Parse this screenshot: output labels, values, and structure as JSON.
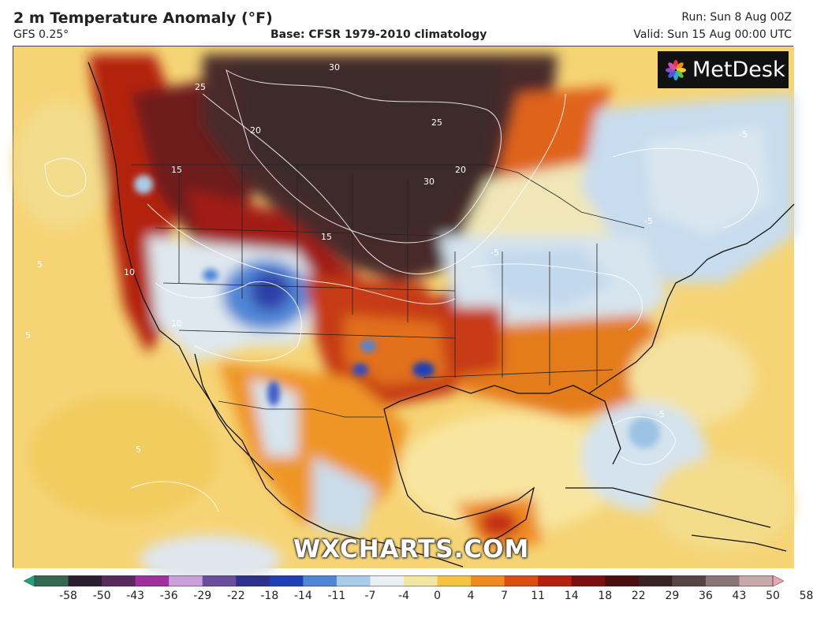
{
  "header": {
    "title": "2 m Temperature Anomaly (°F)",
    "subtitle": "GFS 0.25°",
    "base": "Base: CFSR 1979-2010 climatology",
    "run": "Run: Sun 8 Aug 00Z",
    "valid": "Valid: Sun 15 Aug 00:00 UTC"
  },
  "logo": {
    "text": "MetDesk",
    "icon": "flower-logo-icon"
  },
  "watermark": "WXCHARTS.COM",
  "scale": {
    "labels": [
      "-58",
      "-50",
      "-43",
      "-36",
      "-29",
      "-22",
      "-18",
      "-14",
      "-11",
      "-7",
      "-4",
      "0",
      "4",
      "7",
      "11",
      "14",
      "18",
      "22",
      "29",
      "36",
      "43",
      "50",
      "58"
    ],
    "colors": [
      "#1fa37f",
      "#35684e",
      "#2a1f30",
      "#5b2a5c",
      "#a02fa0",
      "#c9a0d8",
      "#6a4e9e",
      "#2f2f8f",
      "#1f3fb6",
      "#4f86d6",
      "#a9cde8",
      "#e8f0f2",
      "#f3e6a2",
      "#f4c442",
      "#ee8a1f",
      "#de4d10",
      "#b3200f",
      "#7a1010",
      "#4a0f0f",
      "#3b2222",
      "#574545",
      "#8a7676",
      "#c8a8a8",
      "#eea0b4"
    ]
  },
  "map": {
    "contour_labels": [
      "30",
      "25",
      "20",
      "15",
      "10",
      "5",
      "-5",
      "15",
      "10",
      "5",
      "-5",
      "-5",
      "20",
      "25",
      "30",
      "5",
      "-5"
    ]
  }
}
